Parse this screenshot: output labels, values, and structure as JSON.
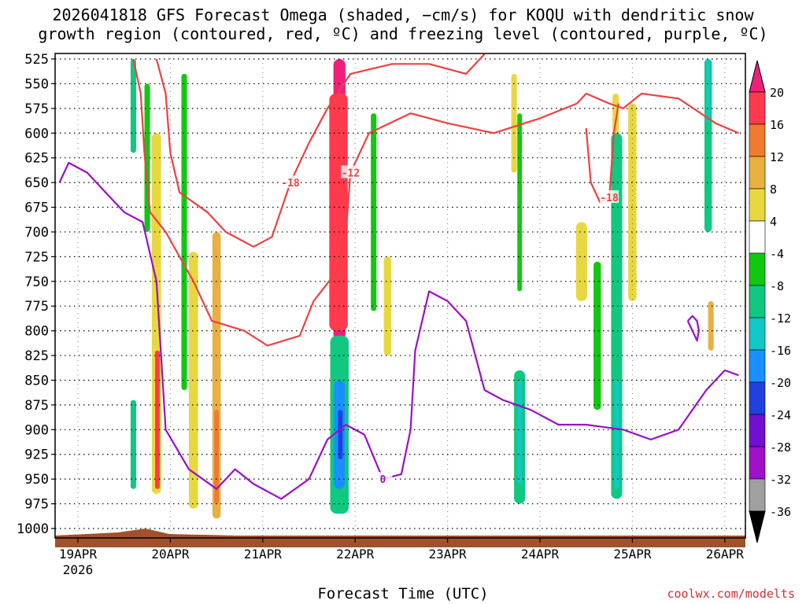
{
  "title_line1": "2026041818 GFS Forecast Omega (shaded, −cm/s) for KOQU with dendritic snow",
  "title_line2": "growth region (contoured, red, ºC) and freezing level (contoured, purple, ºC)",
  "credit": "coolwx.com/modelts",
  "chart_data": {
    "type": "heatmap",
    "title": "2026041818 GFS Forecast Omega (shaded, −cm/s) for KOQU with dendritic snow growth region (contoured, red, ºC) and freezing level (contoured, purple, ºC)",
    "xlabel": "Forecast Time (UTC)",
    "ylabel": "",
    "x_ticks": [
      "19APR",
      "20APR",
      "21APR",
      "22APR",
      "23APR",
      "24APR",
      "25APR",
      "26APR"
    ],
    "x_year_label": "2026",
    "x_range_days": [
      -0.2,
      7.15
    ],
    "y_ticks": [
      525,
      550,
      575,
      600,
      625,
      650,
      675,
      700,
      725,
      750,
      775,
      800,
      825,
      850,
      875,
      900,
      925,
      950,
      975,
      1000
    ],
    "ylim": [
      1000,
      525
    ],
    "y_units": "hPa",
    "grid": true,
    "colorbar": {
      "labels": [
        "20",
        "16",
        "12",
        "8",
        "4",
        "-4",
        "-8",
        "-12",
        "-16",
        "-20",
        "-24",
        "-28",
        "-32",
        "-36"
      ],
      "bins": [
        {
          "range": [
            16,
            20
          ],
          "color": "#ff3a4c"
        },
        {
          "range": [
            12,
            16
          ],
          "color": "#f07a2e"
        },
        {
          "range": [
            8,
            12
          ],
          "color": "#e8b040"
        },
        {
          "range": [
            4,
            8
          ],
          "color": "#e8d840"
        },
        {
          "range": [
            -4,
            4
          ],
          "color": "#ffffff"
        },
        {
          "range": [
            -8,
            -4
          ],
          "color": "#10c810"
        },
        {
          "range": [
            -12,
            -8
          ],
          "color": "#10c880"
        },
        {
          "range": [
            -16,
            -12
          ],
          "color": "#10c8c8"
        },
        {
          "range": [
            -20,
            -16
          ],
          "color": "#1890ff"
        },
        {
          "range": [
            -24,
            -20
          ],
          "color": "#2040e0"
        },
        {
          "range": [
            -28,
            -24
          ],
          "color": "#7010d0"
        },
        {
          "range": [
            -32,
            -28
          ],
          "color": "#a010c8"
        },
        {
          "range": [
            -36,
            -32
          ],
          "color": "#a0a0a0"
        }
      ],
      "top_extend_color": "#f0207a",
      "bottom_extend_color": "#000000"
    },
    "shaded_features": [
      {
        "day": 2.83,
        "p_top": 525,
        "p_bot": 810,
        "value": 22,
        "width_days": 0.13
      },
      {
        "day": 2.82,
        "p_top": 560,
        "p_bot": 800,
        "value": 16,
        "width_days": 0.2
      },
      {
        "day": 2.83,
        "p_top": 805,
        "p_bot": 985,
        "value": -10,
        "width_days": 0.2
      },
      {
        "day": 2.83,
        "p_top": 850,
        "p_bot": 960,
        "value": -18,
        "width_days": 0.12
      },
      {
        "day": 2.84,
        "p_top": 880,
        "p_bot": 930,
        "value": -22,
        "width_days": 0.05
      },
      {
        "day": 0.85,
        "p_top": 600,
        "p_bot": 965,
        "value": 6,
        "width_days": 0.1
      },
      {
        "day": 0.86,
        "p_top": 820,
        "p_bot": 960,
        "value": 18,
        "width_days": 0.05
      },
      {
        "day": 0.6,
        "p_top": 525,
        "p_bot": 620,
        "value": -9,
        "width_days": 0.06
      },
      {
        "day": 0.6,
        "p_top": 870,
        "p_bot": 960,
        "value": -12,
        "width_days": 0.06
      },
      {
        "day": 0.75,
        "p_top": 550,
        "p_bot": 700,
        "value": -6,
        "width_days": 0.06
      },
      {
        "day": 1.25,
        "p_top": 720,
        "p_bot": 980,
        "value": 6,
        "width_days": 0.1
      },
      {
        "day": 1.5,
        "p_top": 700,
        "p_bot": 990,
        "value": 8,
        "width_days": 0.09
      },
      {
        "day": 1.5,
        "p_top": 880,
        "p_bot": 975,
        "value": 13,
        "width_days": 0.05
      },
      {
        "day": 1.15,
        "p_top": 540,
        "p_bot": 860,
        "value": -7,
        "width_days": 0.06
      },
      {
        "day": 3.2,
        "p_top": 580,
        "p_bot": 780,
        "value": -6,
        "width_days": 0.06
      },
      {
        "day": 3.35,
        "p_top": 725,
        "p_bot": 825,
        "value": 6,
        "width_days": 0.08
      },
      {
        "day": 4.72,
        "p_top": 540,
        "p_bot": 640,
        "value": 6,
        "width_days": 0.06
      },
      {
        "day": 4.78,
        "p_top": 580,
        "p_bot": 760,
        "value": -8,
        "width_days": 0.05
      },
      {
        "day": 4.78,
        "p_top": 840,
        "p_bot": 975,
        "value": -9,
        "width_days": 0.12
      },
      {
        "day": 4.78,
        "p_top": 850,
        "p_bot": 955,
        "value": -16,
        "width_days": 0.05
      },
      {
        "day": 5.45,
        "p_top": 690,
        "p_bot": 770,
        "value": 6,
        "width_days": 0.12
      },
      {
        "day": 5.62,
        "p_top": 730,
        "p_bot": 880,
        "value": -6,
        "width_days": 0.08
      },
      {
        "day": 5.82,
        "p_top": 560,
        "p_bot": 730,
        "value": 6,
        "width_days": 0.07
      },
      {
        "day": 5.83,
        "p_top": 600,
        "p_bot": 970,
        "value": -9,
        "width_days": 0.12
      },
      {
        "day": 5.83,
        "p_top": 850,
        "p_bot": 960,
        "value": -16,
        "width_days": 0.05
      },
      {
        "day": 6.0,
        "p_top": 570,
        "p_bot": 770,
        "value": 6,
        "width_days": 0.09
      },
      {
        "day": 6.82,
        "p_top": 525,
        "p_bot": 700,
        "value": -10,
        "width_days": 0.08
      },
      {
        "day": 6.82,
        "p_top": 525,
        "p_bot": 590,
        "value": -16,
        "width_days": 0.04
      },
      {
        "day": 6.85,
        "p_top": 770,
        "p_bot": 820,
        "value": 8,
        "width_days": 0.06
      }
    ],
    "red_contours": [
      {
        "label": "-12",
        "points": [
          [
            0.6,
            525
          ],
          [
            0.68,
            560
          ],
          [
            0.72,
            620
          ],
          [
            0.78,
            680
          ],
          [
            0.95,
            700
          ],
          [
            1.1,
            725
          ],
          [
            1.25,
            750
          ],
          [
            1.45,
            790
          ],
          [
            1.8,
            800
          ],
          [
            2.05,
            815
          ],
          [
            2.4,
            805
          ],
          [
            2.55,
            770
          ],
          [
            2.8,
            740
          ],
          [
            2.9,
            700
          ],
          [
            2.95,
            640
          ],
          [
            3.15,
            600
          ],
          [
            3.6,
            580
          ],
          [
            4.0,
            590
          ],
          [
            4.5,
            600
          ],
          [
            5.0,
            585
          ],
          [
            5.4,
            570
          ],
          [
            5.5,
            560
          ],
          [
            5.75,
            570
          ],
          [
            5.9,
            575
          ],
          [
            6.1,
            560
          ],
          [
            6.5,
            565
          ],
          [
            6.9,
            590
          ],
          [
            7.15,
            600
          ]
        ]
      },
      {
        "label": "-18",
        "points": [
          [
            0.85,
            525
          ],
          [
            0.95,
            560
          ],
          [
            1.0,
            620
          ],
          [
            1.1,
            660
          ],
          [
            1.4,
            680
          ],
          [
            1.6,
            700
          ],
          [
            1.9,
            715
          ],
          [
            2.1,
            705
          ],
          [
            2.3,
            650
          ],
          [
            2.5,
            610
          ],
          [
            2.7,
            575
          ],
          [
            2.95,
            540
          ],
          [
            3.4,
            530
          ],
          [
            3.8,
            530
          ],
          [
            4.2,
            540
          ],
          [
            4.4,
            520
          ]
        ]
      },
      {
        "label": "-18",
        "points": [
          [
            5.5,
            595
          ],
          [
            5.55,
            650
          ],
          [
            5.65,
            670
          ],
          [
            5.75,
            665
          ],
          [
            5.8,
            600
          ],
          [
            5.85,
            570
          ]
        ]
      }
    ],
    "purple_contours": [
      {
        "label": "0",
        "points": [
          [
            -0.2,
            650
          ],
          [
            -0.1,
            630
          ],
          [
            0.1,
            640
          ],
          [
            0.3,
            660
          ],
          [
            0.5,
            680
          ],
          [
            0.7,
            690
          ],
          [
            0.85,
            750
          ],
          [
            0.95,
            900
          ],
          [
            1.2,
            940
          ],
          [
            1.5,
            960
          ],
          [
            1.7,
            940
          ],
          [
            1.9,
            955
          ],
          [
            2.2,
            970
          ],
          [
            2.5,
            950
          ],
          [
            2.7,
            910
          ],
          [
            2.9,
            895
          ],
          [
            3.1,
            905
          ],
          [
            3.3,
            950
          ],
          [
            3.5,
            945
          ],
          [
            3.6,
            900
          ],
          [
            3.65,
            820
          ],
          [
            3.8,
            760
          ],
          [
            4.0,
            770
          ],
          [
            4.2,
            790
          ],
          [
            4.4,
            860
          ],
          [
            4.6,
            870
          ],
          [
            4.9,
            880
          ],
          [
            5.2,
            895
          ],
          [
            5.5,
            895
          ],
          [
            5.9,
            900
          ],
          [
            6.2,
            910
          ],
          [
            6.5,
            900
          ],
          [
            6.8,
            860
          ],
          [
            7.0,
            840
          ],
          [
            7.15,
            845
          ]
        ]
      },
      {
        "label": "",
        "points": [
          [
            6.6,
            790
          ],
          [
            6.65,
            800
          ],
          [
            6.7,
            810
          ],
          [
            6.72,
            800
          ],
          [
            6.7,
            790
          ],
          [
            6.65,
            785
          ],
          [
            6.6,
            790
          ]
        ]
      }
    ]
  }
}
